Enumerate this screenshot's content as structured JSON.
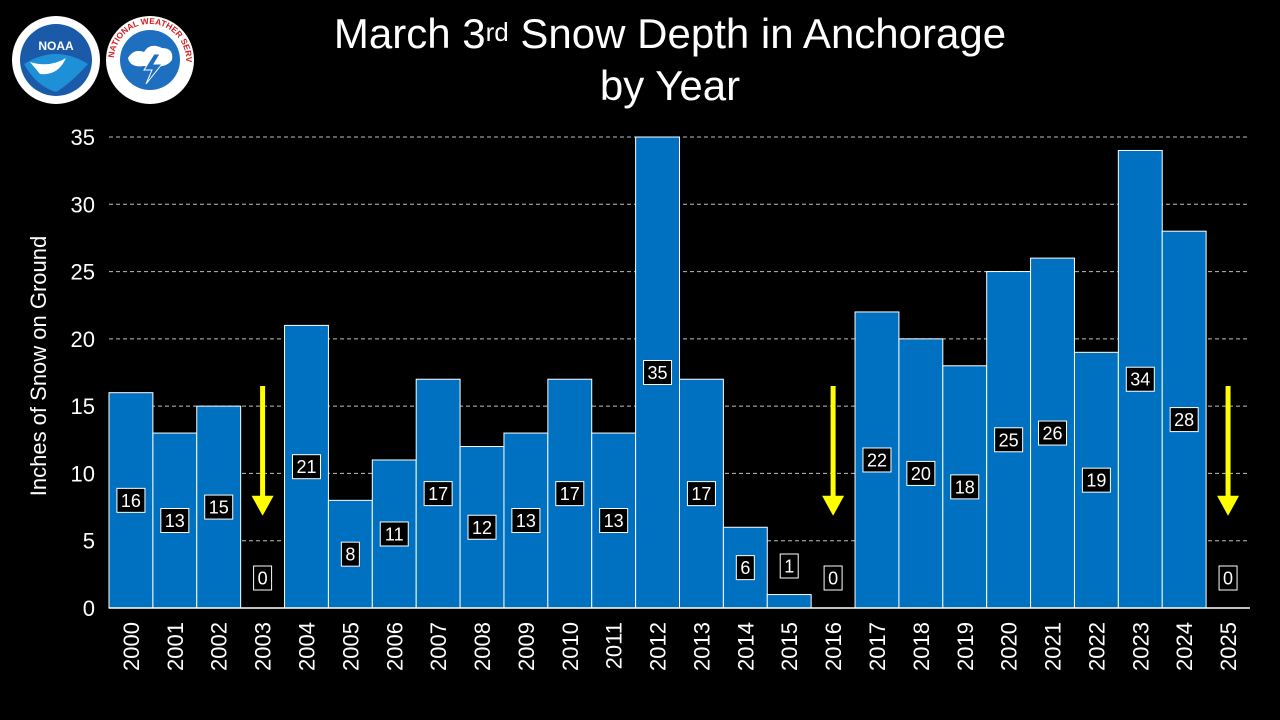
{
  "title": {
    "line1_pre": "March 3",
    "line1_sup": "rd",
    "line1_post": " Snow Depth in Anchorage",
    "line2": "by Year"
  },
  "logos": {
    "noaa_text": "NOAA",
    "nws_text": "NATIONAL WEATHER SERVICE"
  },
  "chart_data": {
    "type": "bar",
    "title": "March 3rd Snow Depth in Anchorage by Year",
    "xlabel": "",
    "ylabel": "Inches  of Snow on Ground",
    "ylim": [
      0,
      35
    ],
    "yticks": [
      0,
      5,
      10,
      15,
      20,
      25,
      30,
      35
    ],
    "grid": true,
    "categories": [
      "2000",
      "2001",
      "2002",
      "2003",
      "2004",
      "2005",
      "2006",
      "2007",
      "2008",
      "2009",
      "2010",
      "2011",
      "2012",
      "2013",
      "2014",
      "2015",
      "2016",
      "2017",
      "2018",
      "2019",
      "2020",
      "2021",
      "2022",
      "2023",
      "2024",
      "2025"
    ],
    "values": [
      16,
      13,
      15,
      0,
      21,
      8,
      11,
      17,
      12,
      13,
      17,
      13,
      35,
      17,
      6,
      1,
      0,
      22,
      20,
      18,
      25,
      26,
      19,
      34,
      28,
      0
    ],
    "zero_year_arrows": [
      "2003",
      "2016",
      "2025"
    ],
    "bar_color": "#0070C0",
    "arrow_color": "#FFFF00"
  }
}
